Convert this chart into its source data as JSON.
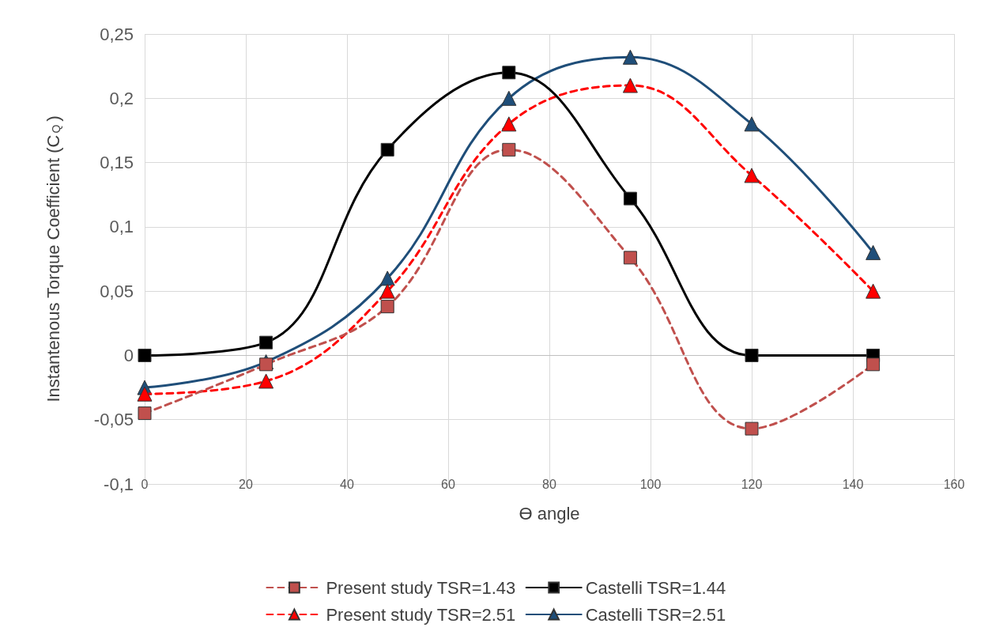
{
  "chart_data": {
    "type": "line",
    "xlabel": "ϴ angle",
    "ylabel": "Instantenous Torque Coefficient (C$_{Q}$)",
    "x": [
      0,
      24,
      48,
      72,
      96,
      120,
      144
    ],
    "series": [
      {
        "name": "Present study TSR=1.43",
        "color": "#c0504d",
        "values": [
          -0.045,
          -0.007,
          0.038,
          0.16,
          0.076,
          -0.057,
          -0.007
        ],
        "marker": "square",
        "line_style": "dashed"
      },
      {
        "name": "Castelli TSR=1.44",
        "color": "#000000",
        "values": [
          0,
          0.01,
          0.16,
          0.22,
          0.122,
          0,
          0
        ],
        "marker": "square",
        "line_style": "solid"
      },
      {
        "name": "Present study TSR=2.51",
        "color": "#ff0000",
        "values": [
          -0.03,
          -0.02,
          0.05,
          0.18,
          0.21,
          0.14,
          0.05
        ],
        "marker": "triangle",
        "line_style": "dashed"
      },
      {
        "name": "Castelli TSR=2.51",
        "color": "#1f4e79",
        "values": [
          -0.025,
          -0.005,
          0.06,
          0.2,
          0.232,
          0.18,
          0.08
        ],
        "marker": "triangle",
        "line_style": "solid"
      }
    ],
    "xlim": [
      0,
      160
    ],
    "xticks": [
      0,
      20,
      40,
      60,
      80,
      100,
      120,
      140,
      160
    ],
    "ylim": [
      -0.1,
      0.25
    ],
    "yticks": [
      {
        "value": -0.1,
        "label": "-0,1"
      },
      {
        "value": -0.05,
        "label": "-0,05"
      },
      {
        "value": 0,
        "label": "0"
      },
      {
        "value": 0.05,
        "label": "0,05"
      },
      {
        "value": 0.1,
        "label": "0,1"
      },
      {
        "value": 0.15,
        "label": "0,15"
      },
      {
        "value": 0.2,
        "label": "0,2"
      },
      {
        "value": 0.25,
        "label": "0,25"
      }
    ],
    "grid": true,
    "legend": "bottom"
  }
}
